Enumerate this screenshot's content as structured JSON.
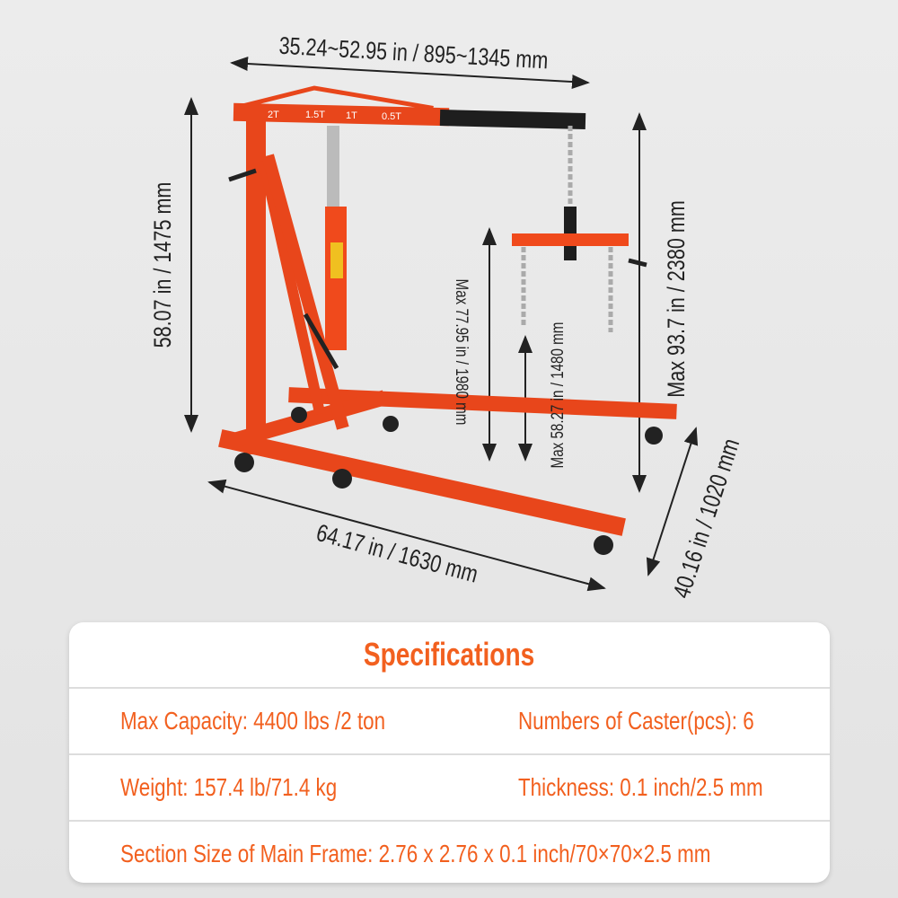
{
  "dimensions": {
    "boom_length": "35.24~52.95 in / 895~1345 mm",
    "mast_height": "58.07 in / 1475 mm",
    "max_height": "Max 93.7 in / 2380 mm",
    "max_lift_hook": "Max 77.95 in / 1980 mm",
    "max_lift_chain": "Max 58.27 in / 1480 mm",
    "leg_length": "64.17 in / 1630 mm",
    "width": "40.16 in / 1020 mm"
  },
  "boom_labels": [
    "2T",
    "1.5T",
    "1T",
    "0.5T"
  ],
  "colors": {
    "frame": "#f04a1c",
    "accent": "#f2601f",
    "extension": "#1e1e1e"
  },
  "specs": {
    "title": "Specifications",
    "rows": [
      [
        "Max Capacity: 4400 lbs /2 ton",
        "Numbers of Caster(pcs): 6"
      ],
      [
        "Weight: 157.4 lb/71.4 kg",
        "Thickness: 0.1 inch/2.5 mm"
      ],
      [
        "Section Size of Main Frame: 2.76 x 2.76 x 0.1 inch/70×70×2.5 mm"
      ]
    ]
  }
}
